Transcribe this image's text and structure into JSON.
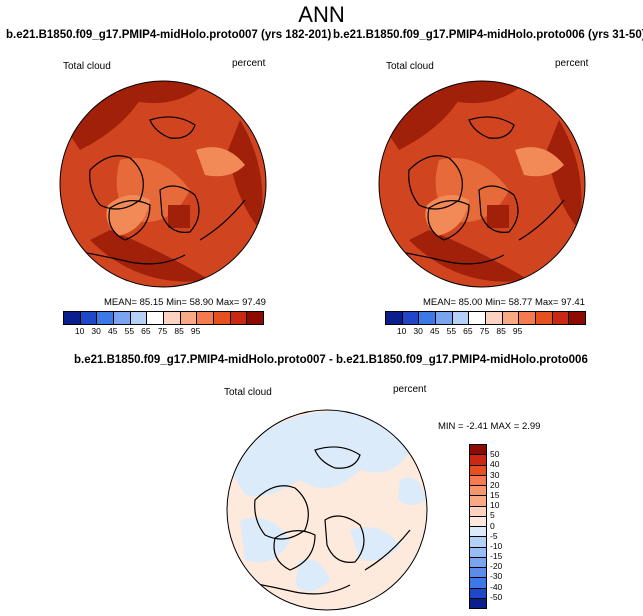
{
  "header": {
    "title": "ANN"
  },
  "left_panel": {
    "case": "b.e21.B1850.f09_g17.PMIP4-midHolo.proto007 (yrs 182-201)",
    "variable": "Total cloud",
    "units": "percent",
    "stats": {
      "mean": "85.15",
      "min": "58.90",
      "max": "97.49"
    }
  },
  "right_panel": {
    "case": "b.e21.B1850.f09_g17.PMIP4-midHolo.proto006 (yrs 31-50)",
    "variable": "Total cloud",
    "units": "percent",
    "stats": {
      "mean": "85.00",
      "min": "58.77",
      "max": "97.41"
    }
  },
  "diff_panel": {
    "case": "b.e21.B1850.f09_g17.PMIP4-midHolo.proto007 - b.e21.B1850.f09_g17.PMIP4-midHolo.proto006",
    "variable": "Total cloud",
    "units": "percent",
    "stats": {
      "min": "-2.41",
      "max": "2.99"
    }
  },
  "labels": {
    "mean": "MEAN=",
    "min": "Min=",
    "max": "Max=",
    "min_upper": "MIN =",
    "max_upper": "MAX ="
  },
  "colorbar_abs": {
    "colors": [
      "#0a1e8c",
      "#1e48c8",
      "#3c78e6",
      "#78a4f0",
      "#b4d2f8",
      "#ffffff",
      "#fcd2c0",
      "#faaa82",
      "#f67a50",
      "#e6501e",
      "#c82814",
      "#8c0a00"
    ],
    "labels": [
      "10",
      "30",
      "45",
      "55",
      "65",
      "75",
      "85",
      "95"
    ]
  },
  "colorbar_diff": {
    "colors": [
      "#8c0a00",
      "#c82814",
      "#e6501e",
      "#f67a50",
      "#f7966e",
      "#faaa82",
      "#fcd2c0",
      "#fdeadc",
      "#dcebfa",
      "#b4d2f8",
      "#96bef4",
      "#78a4f0",
      "#5a8cec",
      "#3c78e6",
      "#1e48c8",
      "#0a1e8c"
    ],
    "labels": [
      "50",
      "40",
      "30",
      "20",
      "15",
      "10",
      "5",
      "0",
      "-5",
      "-10",
      "-15",
      "-20",
      "-30",
      "-40",
      "-50"
    ]
  },
  "map_colors": {
    "dark": "#a0200a",
    "mid": "#d04420",
    "light": "#e66a3a",
    "lighter": "#f28a58",
    "diff_pos": "#fdeadc",
    "diff_neg": "#dcebfa"
  }
}
